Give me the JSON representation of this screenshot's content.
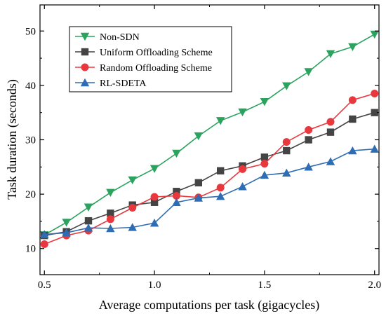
{
  "chart_data": {
    "type": "line",
    "xlabel": "Average computations per task (gigacycles)",
    "ylabel": "Task duration (seconds)",
    "xlim": [
      0.48,
      2.02
    ],
    "ylim": [
      5.2,
      54.8
    ],
    "x": [
      0.5,
      0.6,
      0.7,
      0.8,
      0.9,
      1.0,
      1.1,
      1.2,
      1.3,
      1.4,
      1.5,
      1.6,
      1.7,
      1.8,
      1.9,
      2.0
    ],
    "xticks": [
      0.5,
      1.0,
      1.5,
      2.0
    ],
    "xtick_labels": [
      "0.5",
      "1.0",
      "1.5",
      "2.0"
    ],
    "yticks": [
      10,
      20,
      30,
      40,
      50
    ],
    "ytick_labels": [
      "10",
      "20",
      "30",
      "40",
      "50"
    ],
    "grid": false,
    "legend_position": "top-left",
    "series": [
      {
        "name": "Non-SDN",
        "color": "#2ca25f",
        "marker": "triangle-down",
        "values": [
          12.5,
          14.8,
          17.6,
          20.3,
          22.6,
          24.7,
          27.5,
          30.7,
          33.5,
          35.1,
          37.0,
          39.9,
          42.5,
          45.8,
          47.1,
          49.4
        ]
      },
      {
        "name": "Uniform Offloading Scheme",
        "color": "#444444",
        "marker": "square",
        "values": [
          12.4,
          13.1,
          15.1,
          16.5,
          18.0,
          18.5,
          20.5,
          22.1,
          24.3,
          25.2,
          26.8,
          28.0,
          30.0,
          31.4,
          33.8,
          35.0
        ]
      },
      {
        "name": "Random Offloading Scheme",
        "color": "#e8383d",
        "marker": "circle",
        "values": [
          10.8,
          12.4,
          13.3,
          15.4,
          17.5,
          19.5,
          19.7,
          19.4,
          21.2,
          24.6,
          25.6,
          29.6,
          31.8,
          33.3,
          37.3,
          38.5
        ]
      },
      {
        "name": "RL-SDETA",
        "color": "#2e6db4",
        "marker": "triangle-up",
        "values": [
          12.6,
          12.9,
          13.8,
          13.7,
          13.9,
          14.7,
          18.5,
          19.3,
          19.6,
          21.4,
          23.5,
          23.9,
          25.0,
          26.0,
          28.0,
          28.3
        ]
      }
    ]
  }
}
